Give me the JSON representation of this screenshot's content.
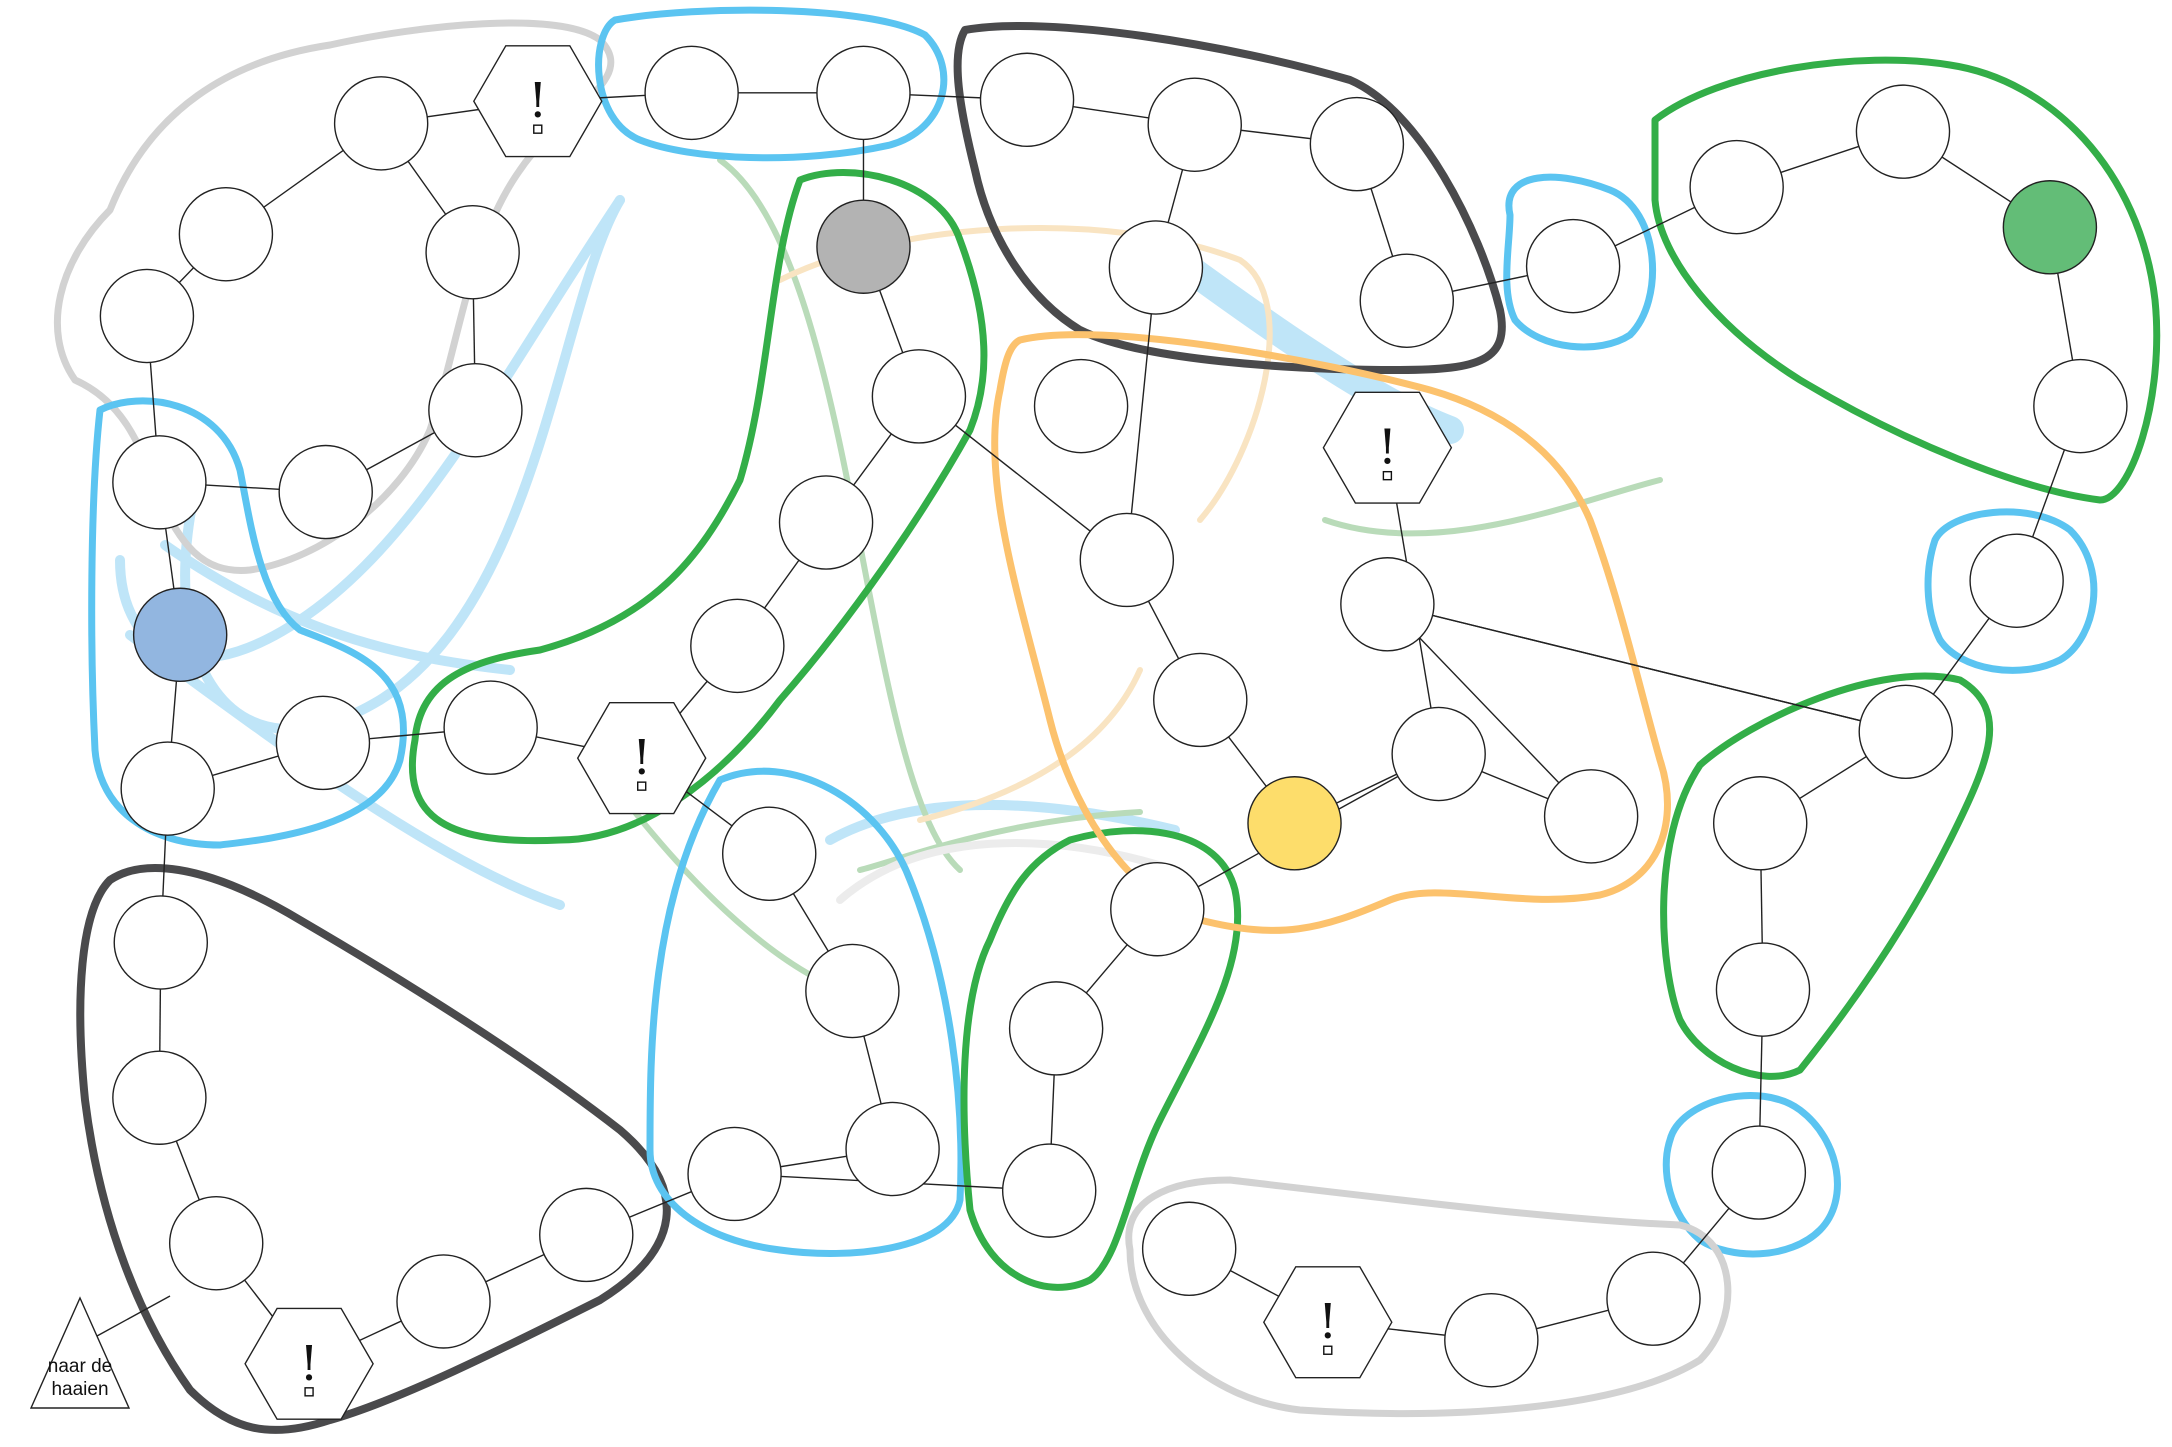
{
  "finish": {
    "line1": "naar de",
    "line2": "haaien"
  },
  "event_symbol": "!",
  "colors": {
    "blue_region": "#5bc4f1",
    "green_region": "#33ae48",
    "dark_region": "#4a4a4c",
    "light_gray_region": "#d2d2d2",
    "orange_region": "#fcc26d",
    "pawn_blue": "#92b6e0",
    "pawn_gray": "#b3b3b3",
    "pawn_green": "#63bd77",
    "pawn_yellow": "#fddd6b",
    "light_blue_trail": "#bfe5f8",
    "light_green_trail": "#b9dbb9",
    "light_orange_trail": "#f9e4c2"
  },
  "pawns": [
    {
      "name": "blue-pawn",
      "color": "#92b6e0"
    },
    {
      "name": "gray-pawn",
      "color": "#b3b3b3"
    },
    {
      "name": "green-pawn",
      "color": "#63bd77"
    },
    {
      "name": "yellow-pawn",
      "color": "#fddd6b"
    }
  ]
}
